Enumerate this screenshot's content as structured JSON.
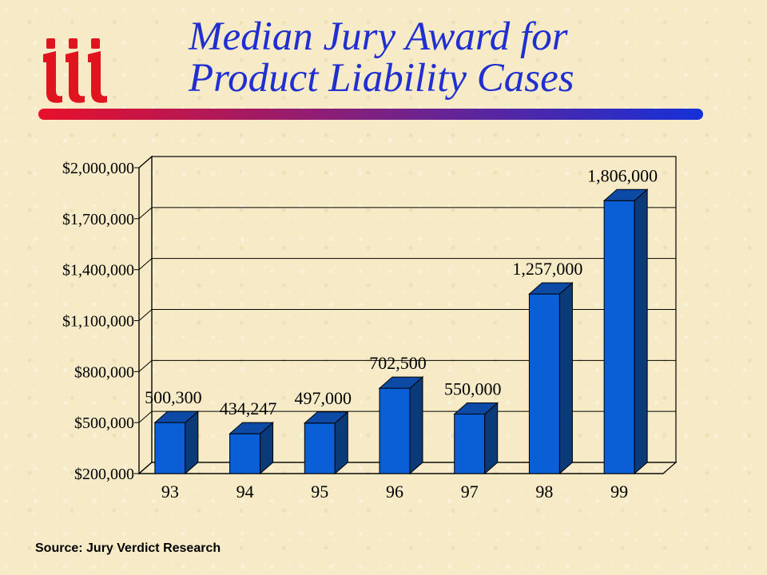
{
  "header": {
    "title_line1": "Median Jury Award for",
    "title_line2": "Product Liability Cases"
  },
  "logo": {
    "icon": "iii-logo-icon",
    "color": "#e0141e"
  },
  "footer": {
    "source": "Source:  Jury Verdict Research"
  },
  "colors": {
    "title": "#1f2fd0",
    "bar_front": "#0a5fd6",
    "bar_side": "#0a3a78",
    "bar_top": "#0c4aa6",
    "rule_start": "#e8102a",
    "rule_end": "#1530d8"
  },
  "chart_data": {
    "type": "bar",
    "title": "",
    "xlabel": "",
    "ylabel": "",
    "categories": [
      "93",
      "94",
      "95",
      "96",
      "97",
      "98",
      "99"
    ],
    "values": [
      500300,
      434247,
      497000,
      702500,
      550000,
      1257000,
      1806000
    ],
    "data_labels": [
      "500,300",
      "434,247",
      "497,000",
      "702,500",
      "550,000",
      "1,257,000",
      "1,806,000"
    ],
    "ylim": [
      200000,
      2000000
    ],
    "yticks": [
      200000,
      500000,
      800000,
      1100000,
      1400000,
      1700000,
      2000000
    ],
    "ytick_labels": [
      "$200,000",
      "$500,000",
      "$800,000",
      "$1,100,000",
      "$1,400,000",
      "$1,700,000",
      "$2,000,000"
    ],
    "grid": true,
    "legend": "none",
    "style": "3d"
  }
}
